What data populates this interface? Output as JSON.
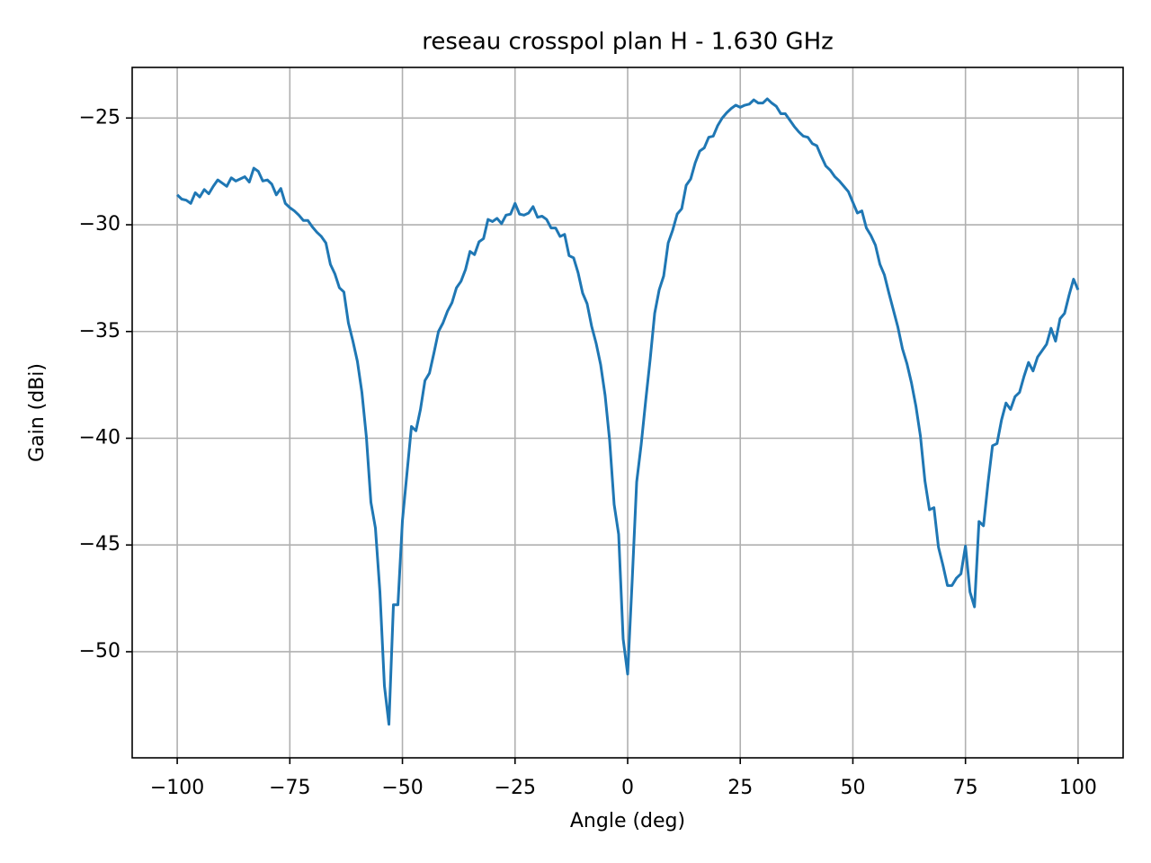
{
  "chart_data": {
    "type": "line",
    "title": "reseau crosspol plan H - 1.630 GHz",
    "xlabel": "Angle (deg)",
    "ylabel": "Gain (dBi)",
    "xlim": [
      -110,
      110
    ],
    "ylim": [
      -54.97,
      -22.63
    ],
    "xticks": [
      {
        "value": -100,
        "label": "−100"
      },
      {
        "value": -75,
        "label": "−75"
      },
      {
        "value": -50,
        "label": "−50"
      },
      {
        "value": -25,
        "label": "−25"
      },
      0,
      25,
      50,
      75,
      100
    ],
    "yticks": [
      {
        "value": -50,
        "label": "−50"
      },
      {
        "value": -45,
        "label": "−45"
      },
      {
        "value": -40,
        "label": "−40"
      },
      {
        "value": -35,
        "label": "−35"
      },
      {
        "value": -30,
        "label": "−30"
      },
      {
        "value": -25,
        "label": "−25"
      }
    ],
    "grid": true,
    "x": [
      -100,
      -99,
      -98,
      -97,
      -96,
      -95,
      -94,
      -93,
      -92,
      -91,
      -90,
      -89,
      -88,
      -87,
      -86,
      -85,
      -84,
      -83,
      -82,
      -81,
      -80,
      -79,
      -78,
      -77,
      -76,
      -75,
      -74,
      -73,
      -72,
      -71,
      -70,
      -69,
      -68,
      -67,
      -66,
      -65,
      -64,
      -63,
      -62,
      -61,
      -60,
      -59,
      -58,
      -57,
      -56,
      -55,
      -54,
      -53,
      -52,
      -51,
      -50,
      -49,
      -48,
      -47,
      -46,
      -45,
      -44,
      -43,
      -42,
      -41,
      -40,
      -39,
      -38,
      -37,
      -36,
      -35,
      -34,
      -33,
      -32,
      -31,
      -30,
      -29,
      -28,
      -27,
      -26,
      -25,
      -24,
      -23,
      -22,
      -21,
      -20,
      -19,
      -18,
      -17,
      -16,
      -15,
      -14,
      -13,
      -12,
      -11,
      -10,
      -9,
      -8,
      -7,
      -6,
      -5,
      -4,
      -3,
      -2,
      -1,
      0,
      1,
      2,
      3,
      4,
      5,
      6,
      7,
      8,
      9,
      10,
      11,
      12,
      13,
      14,
      15,
      16,
      17,
      18,
      19,
      20,
      21,
      22,
      23,
      24,
      25,
      26,
      27,
      28,
      29,
      30,
      31,
      32,
      33,
      34,
      35,
      36,
      37,
      38,
      39,
      40,
      41,
      42,
      43,
      44,
      45,
      46,
      47,
      48,
      49,
      50,
      51,
      52,
      53,
      54,
      55,
      56,
      57,
      58,
      59,
      60,
      61,
      62,
      63,
      64,
      65,
      66,
      67,
      68,
      69,
      70,
      71,
      72,
      73,
      74,
      75,
      76,
      77,
      78,
      79,
      80,
      81,
      82,
      83,
      84,
      85,
      86,
      87,
      88,
      89,
      90,
      91,
      92,
      93,
      94,
      95,
      96,
      97,
      98,
      99,
      100
    ],
    "series": [
      {
        "color": "#1f77b4",
        "values": [
          -28.6,
          -28.8,
          -28.85,
          -29.0,
          -28.5,
          -28.7,
          -28.35,
          -28.55,
          -28.2,
          -27.9,
          -28.05,
          -28.2,
          -27.8,
          -27.95,
          -27.85,
          -27.75,
          -28.0,
          -27.35,
          -27.5,
          -27.95,
          -27.9,
          -28.1,
          -28.6,
          -28.3,
          -29.0,
          -29.2,
          -29.35,
          -29.55,
          -29.8,
          -29.8,
          -30.1,
          -30.35,
          -30.55,
          -30.85,
          -31.85,
          -32.3,
          -32.95,
          -33.15,
          -34.6,
          -35.45,
          -36.4,
          -37.85,
          -39.95,
          -43.0,
          -44.2,
          -47.2,
          -51.6,
          -53.4,
          -47.8,
          -47.8,
          -43.85,
          -41.65,
          -39.45,
          -39.65,
          -38.65,
          -37.3,
          -36.95,
          -36.0,
          -35.0,
          -34.6,
          -34.05,
          -33.65,
          -32.95,
          -32.65,
          -32.1,
          -31.25,
          -31.4,
          -30.8,
          -30.65,
          -29.75,
          -29.85,
          -29.7,
          -29.95,
          -29.55,
          -29.5,
          -29.0,
          -29.5,
          -29.55,
          -29.45,
          -29.15,
          -29.65,
          -29.6,
          -29.75,
          -30.15,
          -30.15,
          -30.55,
          -30.45,
          -31.45,
          -31.55,
          -32.25,
          -33.2,
          -33.7,
          -34.75,
          -35.55,
          -36.55,
          -38.0,
          -40.1,
          -43.1,
          -44.5,
          -49.4,
          -51.05,
          -46.7,
          -42.05,
          -40.3,
          -38.25,
          -36.3,
          -34.15,
          -33.05,
          -32.4,
          -30.85,
          -30.25,
          -29.5,
          -29.25,
          -28.15,
          -27.85,
          -27.1,
          -26.55,
          -26.4,
          -25.9,
          -25.85,
          -25.35,
          -25.0,
          -24.75,
          -24.55,
          -24.4,
          -24.5,
          -24.4,
          -24.35,
          -24.15,
          -24.3,
          -24.3,
          -24.1,
          -24.3,
          -24.45,
          -24.8,
          -24.8,
          -25.1,
          -25.4,
          -25.65,
          -25.85,
          -25.9,
          -26.2,
          -26.3,
          -26.8,
          -27.25,
          -27.45,
          -27.75,
          -27.95,
          -28.2,
          -28.45,
          -28.95,
          -29.45,
          -29.35,
          -30.15,
          -30.5,
          -30.95,
          -31.85,
          -32.35,
          -33.2,
          -34.0,
          -34.8,
          -35.8,
          -36.5,
          -37.4,
          -38.5,
          -39.9,
          -42.0,
          -43.35,
          -43.25,
          -45.1,
          -45.95,
          -46.9,
          -46.9,
          -46.55,
          -46.35,
          -45.05,
          -47.2,
          -47.9,
          -43.9,
          -44.1,
          -42.1,
          -40.35,
          -40.25,
          -39.15,
          -38.35,
          -38.65,
          -38.05,
          -37.85,
          -37.1,
          -36.45,
          -36.85,
          -36.2,
          -35.9,
          -35.6,
          -34.85,
          -35.45,
          -34.4,
          -34.15,
          -33.3,
          -32.55,
          -33.05
        ]
      }
    ]
  }
}
